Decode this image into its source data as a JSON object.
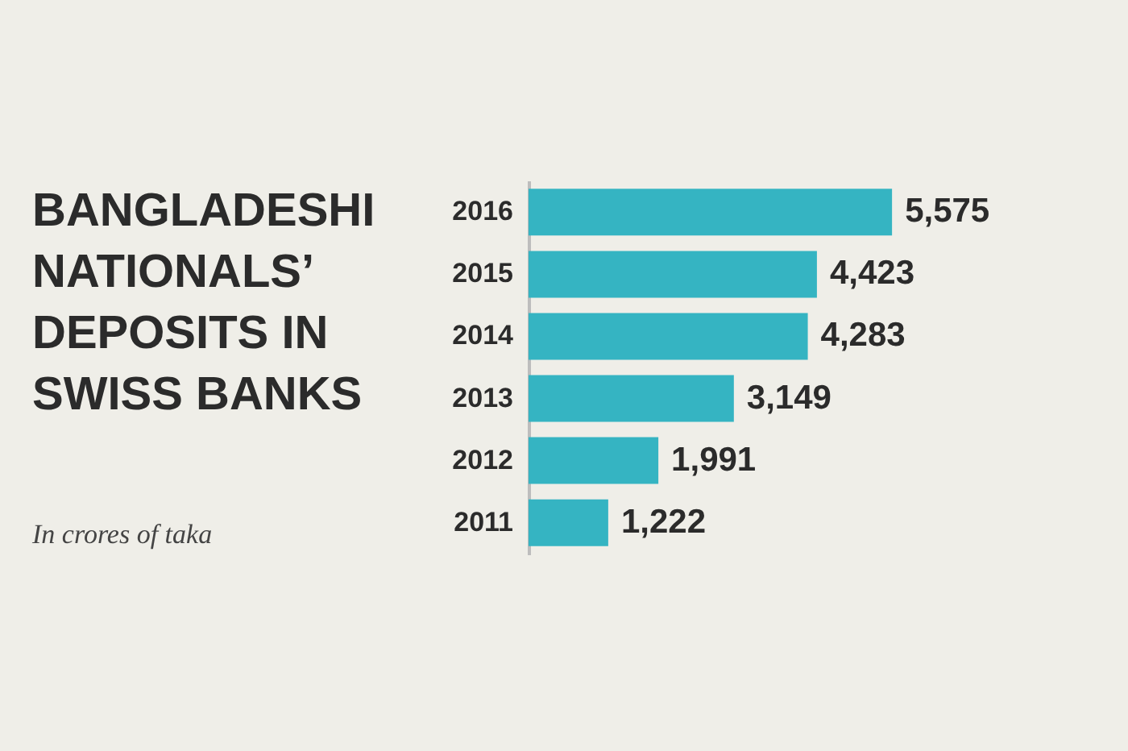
{
  "chart_data": {
    "type": "bar",
    "orientation": "horizontal",
    "title": "BANGLADESHI NATIONALS’ DEPOSITS IN SWISS BANKS",
    "subtitle": "In crores of taka",
    "categories": [
      "2016",
      "2015",
      "2014",
      "2013",
      "2012",
      "2011"
    ],
    "values": [
      5575,
      4423,
      4283,
      3149,
      1991,
      1222
    ],
    "value_labels": [
      "5,575",
      "4,423",
      "4,283",
      "3,149",
      "1,991",
      "1,222"
    ],
    "color": "#35b4c2"
  }
}
